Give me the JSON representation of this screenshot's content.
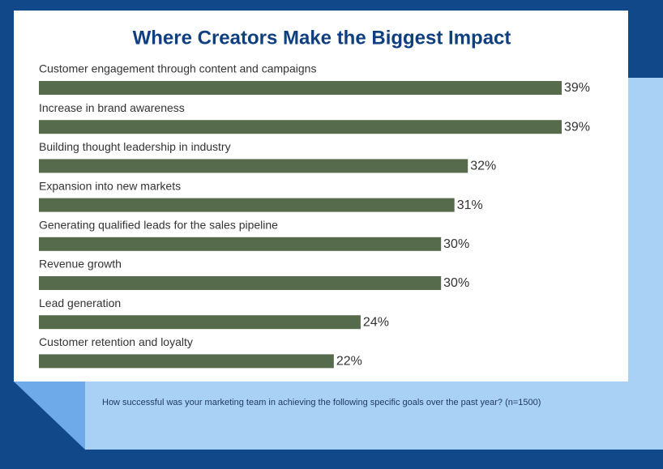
{
  "chart_data": {
    "type": "bar",
    "orientation": "horizontal",
    "title": "Where Creators Make the Biggest Impact",
    "categories": [
      "Customer engagement through content and campaigns",
      "Increase in brand awareness",
      "Building thought leadership in industry",
      "Expansion into new markets",
      "Generating qualified leads for the sales pipeline",
      "Revenue growth",
      "Lead generation",
      "Customer retention and loyalty"
    ],
    "values": [
      39,
      39,
      32,
      31,
      30,
      30,
      24,
      22
    ],
    "value_labels": [
      "39%",
      "39%",
      "32%",
      "31%",
      "30%",
      "30%",
      "24%",
      "22%"
    ],
    "color": "#566b4c",
    "footnote": "How successful was your marketing team in achieving the following specific goals over the past year? (n=1500)"
  }
}
